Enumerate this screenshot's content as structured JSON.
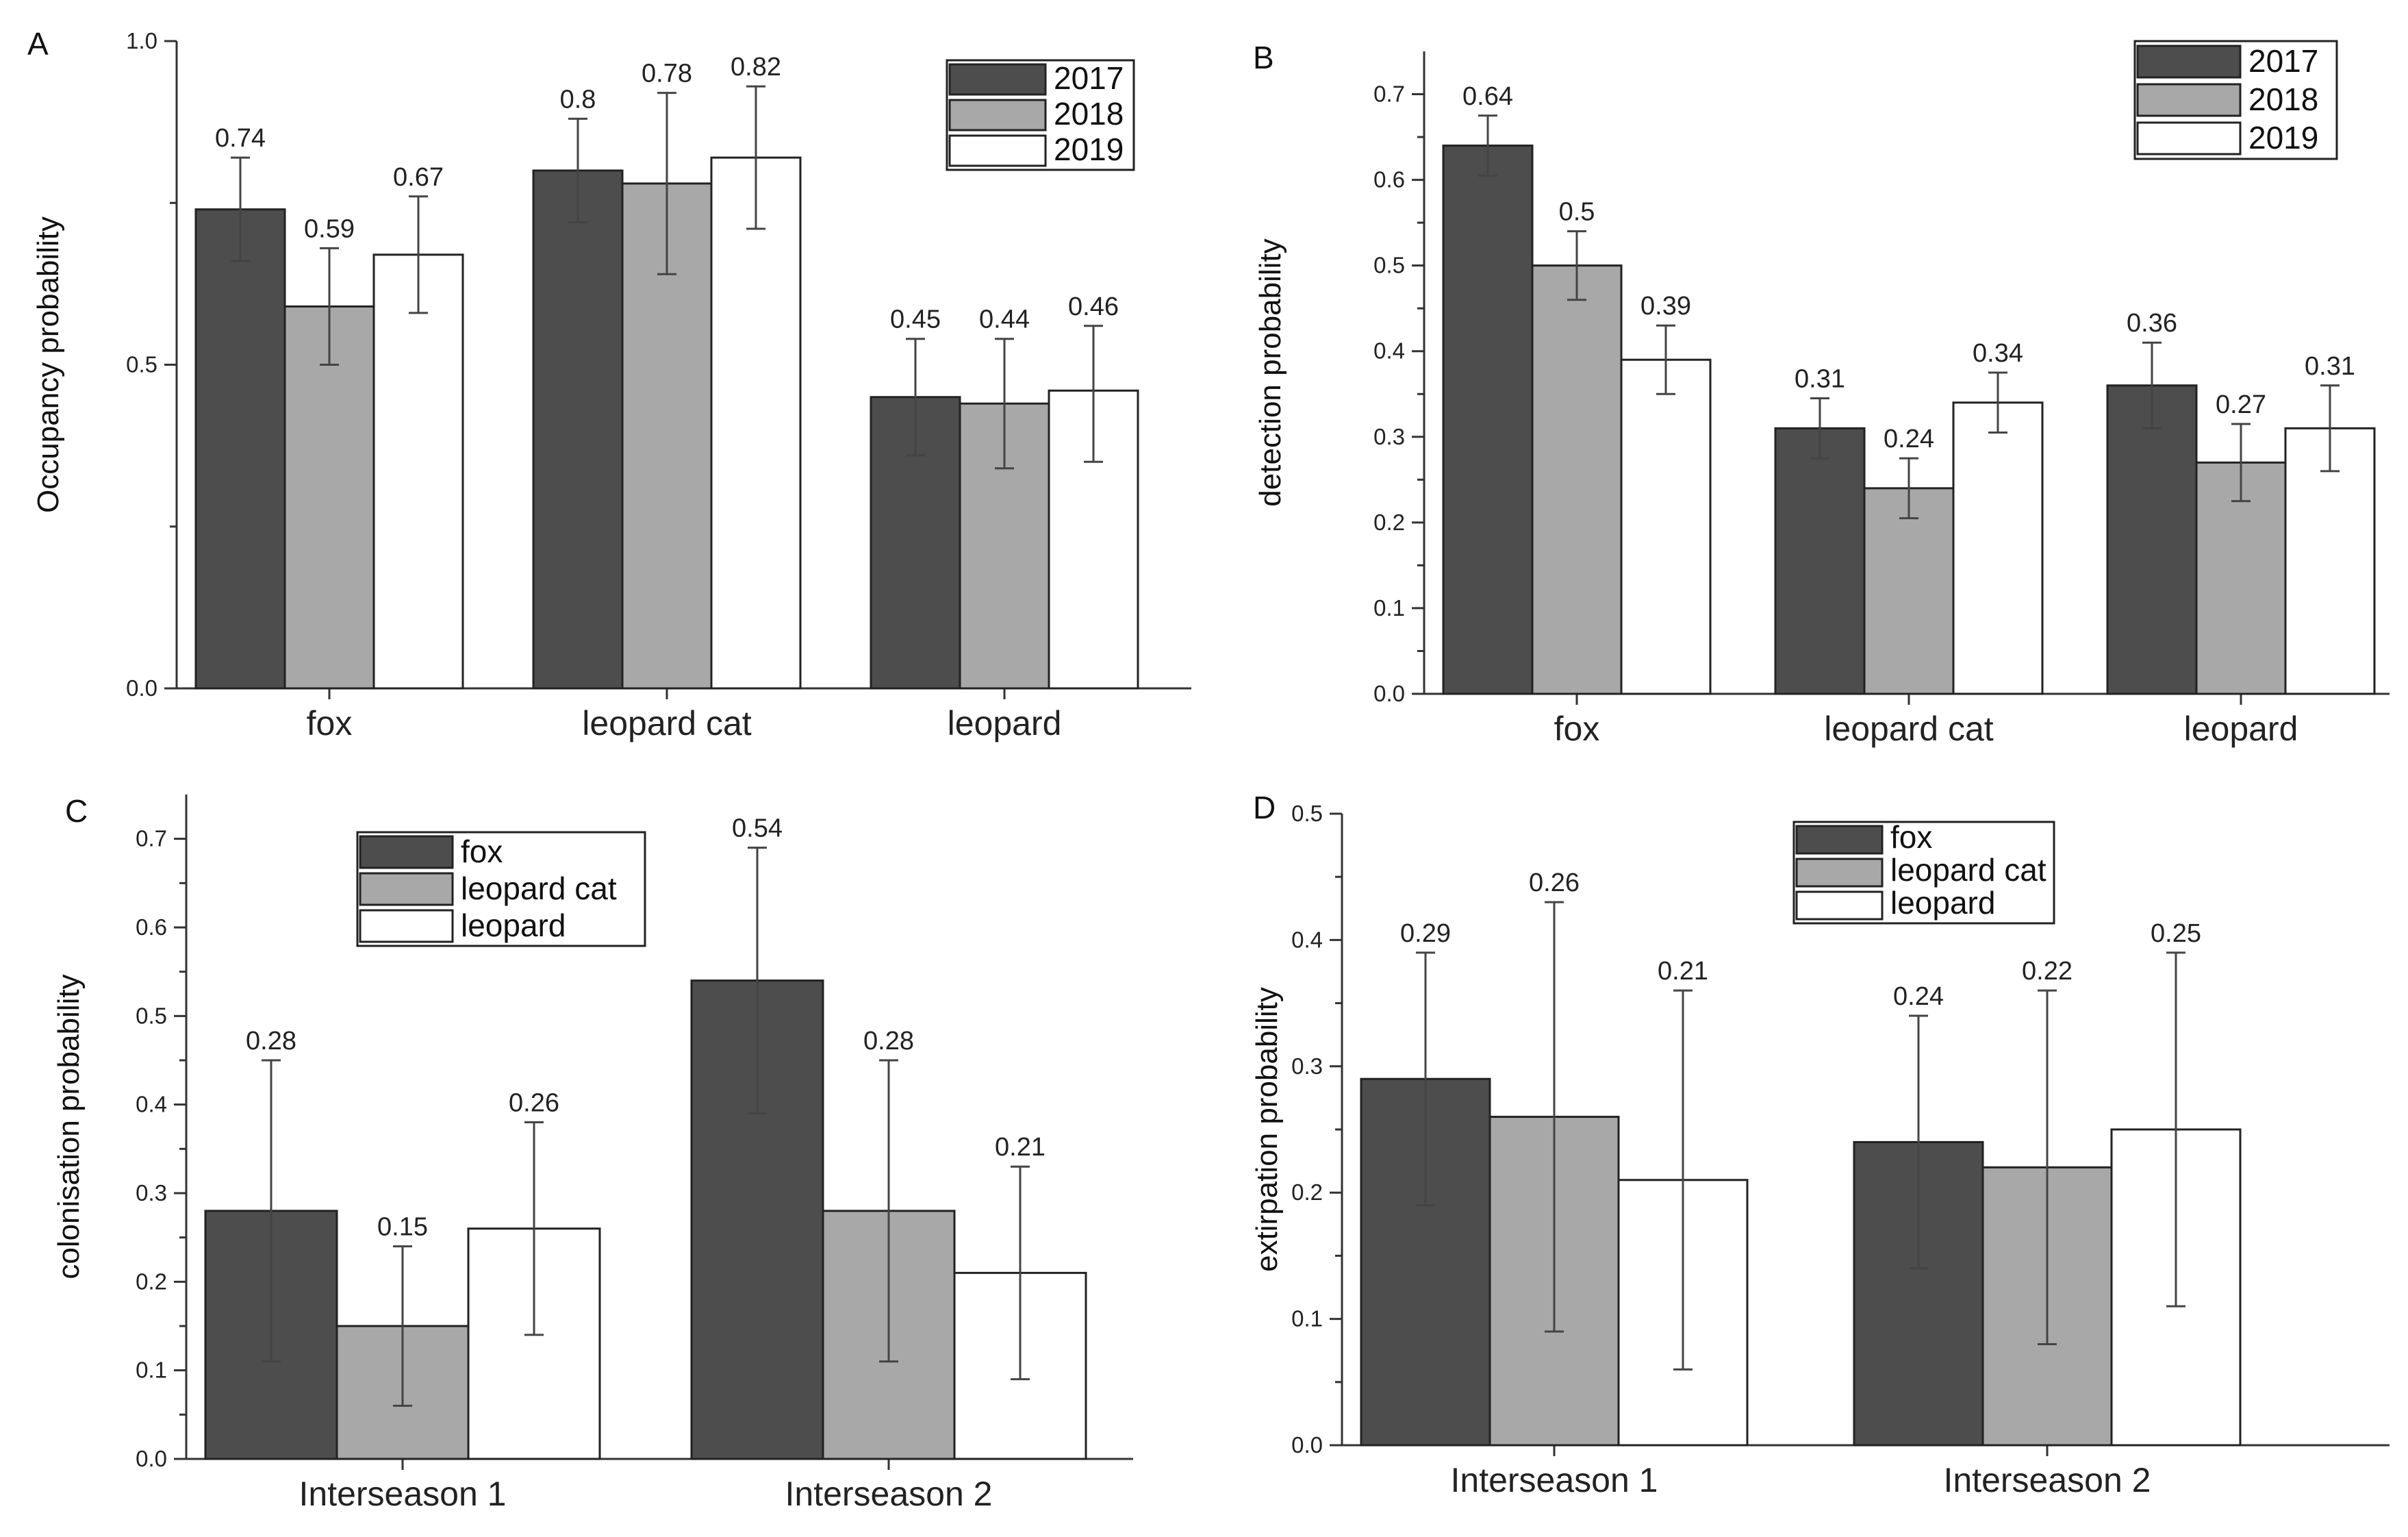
{
  "colors": {
    "dark": "#4d4d4d",
    "gray": "#a8a8a8",
    "white": "#ffffff",
    "border": "#222222"
  },
  "chart_data": [
    {
      "panel": "A",
      "type": "bar",
      "ylabel": "Occupancy probability",
      "ylim": [
        0,
        1.0
      ],
      "yticks": [
        0.0,
        0.5,
        1.0
      ],
      "ytick_labels": [
        "0.0",
        "0.5",
        "1.0"
      ],
      "categories": [
        "fox",
        "leopard cat",
        "leopard"
      ],
      "legend": {
        "position": "top-right"
      },
      "series": [
        {
          "name": "2017",
          "color": "#4d4d4d",
          "values": [
            0.74,
            0.8,
            0.45
          ],
          "labels": [
            "0.74",
            "0.8",
            "0.45"
          ],
          "err_low": [
            0.66,
            0.72,
            0.36
          ],
          "err_high": [
            0.82,
            0.88,
            0.54
          ]
        },
        {
          "name": "2018",
          "color": "#a8a8a8",
          "values": [
            0.59,
            0.78,
            0.44
          ],
          "labels": [
            "0.59",
            "0.78",
            "0.44"
          ],
          "err_low": [
            0.5,
            0.64,
            0.34
          ],
          "err_high": [
            0.68,
            0.92,
            0.54
          ]
        },
        {
          "name": "2019",
          "color": "#ffffff",
          "values": [
            0.67,
            0.82,
            0.46
          ],
          "labels": [
            "0.67",
            "0.82",
            "0.46"
          ],
          "err_low": [
            0.58,
            0.71,
            0.35
          ],
          "err_high": [
            0.76,
            0.93,
            0.56
          ]
        }
      ]
    },
    {
      "panel": "B",
      "type": "bar",
      "ylabel": "detection probability",
      "ylim": [
        0,
        0.75
      ],
      "yticks": [
        0.0,
        0.1,
        0.2,
        0.3,
        0.4,
        0.5,
        0.6,
        0.7
      ],
      "ytick_labels": [
        "0.0",
        "0.1",
        "0.2",
        "0.3",
        "0.4",
        "0.5",
        "0.6",
        "0.7"
      ],
      "categories": [
        "fox",
        "leopard cat",
        "leopard"
      ],
      "legend": {
        "position": "top-right"
      },
      "series": [
        {
          "name": "2017",
          "color": "#4d4d4d",
          "values": [
            0.64,
            0.31,
            0.36
          ],
          "labels": [
            "0.64",
            "0.31",
            "0.36"
          ],
          "err_low": [
            0.605,
            0.275,
            0.31
          ],
          "err_high": [
            0.675,
            0.345,
            0.41
          ]
        },
        {
          "name": "2018",
          "color": "#a8a8a8",
          "values": [
            0.5,
            0.24,
            0.27
          ],
          "labels": [
            "0.5",
            "0.24",
            "0.27"
          ],
          "err_low": [
            0.46,
            0.205,
            0.225
          ],
          "err_high": [
            0.54,
            0.275,
            0.315
          ]
        },
        {
          "name": "2019",
          "color": "#ffffff",
          "values": [
            0.39,
            0.34,
            0.31
          ],
          "labels": [
            "0.39",
            "0.34",
            "0.31"
          ],
          "err_low": [
            0.35,
            0.305,
            0.26
          ],
          "err_high": [
            0.43,
            0.375,
            0.36
          ]
        }
      ]
    },
    {
      "panel": "C",
      "type": "bar",
      "ylabel": "colonisation probability",
      "ylim": [
        0,
        0.75
      ],
      "yticks": [
        0.0,
        0.1,
        0.2,
        0.3,
        0.4,
        0.5,
        0.6,
        0.7
      ],
      "ytick_labels": [
        "0.0",
        "0.1",
        "0.2",
        "0.3",
        "0.4",
        "0.5",
        "0.6",
        "0.7"
      ],
      "categories": [
        "Interseason 1",
        "Interseason 2"
      ],
      "legend": {
        "position": "top-left"
      },
      "series": [
        {
          "name": "fox",
          "color": "#4d4d4d",
          "values": [
            0.28,
            0.54
          ],
          "labels": [
            "0.28",
            "0.54"
          ],
          "err_low": [
            0.11,
            0.39
          ],
          "err_high": [
            0.45,
            0.69
          ]
        },
        {
          "name": "leopard cat",
          "color": "#a8a8a8",
          "values": [
            0.15,
            0.28
          ],
          "labels": [
            "0.15",
            "0.28"
          ],
          "err_low": [
            0.06,
            0.11
          ],
          "err_high": [
            0.24,
            0.45
          ]
        },
        {
          "name": "leopard",
          "color": "#ffffff",
          "values": [
            0.26,
            0.21
          ],
          "labels": [
            "0.26",
            "0.21"
          ],
          "err_low": [
            0.14,
            0.09
          ],
          "err_high": [
            0.38,
            0.33
          ]
        }
      ]
    },
    {
      "panel": "D",
      "type": "bar",
      "ylabel": "extirpation probability",
      "ylim": [
        0,
        0.5
      ],
      "yticks": [
        0.0,
        0.1,
        0.2,
        0.3,
        0.4,
        0.5
      ],
      "ytick_labels": [
        "0.0",
        "0.1",
        "0.2",
        "0.3",
        "0.4",
        "0.5"
      ],
      "categories": [
        "Interseason 1",
        "Interseason 2"
      ],
      "legend": {
        "position": "top-center"
      },
      "series": [
        {
          "name": "fox",
          "color": "#4d4d4d",
          "values": [
            0.29,
            0.24
          ],
          "labels": [
            "0.29",
            "0.24"
          ],
          "err_low": [
            0.19,
            0.14
          ],
          "err_high": [
            0.39,
            0.34
          ]
        },
        {
          "name": "leopard cat",
          "color": "#a8a8a8",
          "values": [
            0.26,
            0.22
          ],
          "labels": [
            "0.26",
            "0.22"
          ],
          "err_low": [
            0.09,
            0.08
          ],
          "err_high": [
            0.43,
            0.36
          ]
        },
        {
          "name": "leopard",
          "color": "#ffffff",
          "values": [
            0.21,
            0.25
          ],
          "labels": [
            "0.21",
            "0.25"
          ],
          "err_low": [
            0.06,
            0.11
          ],
          "err_high": [
            0.36,
            0.39
          ]
        }
      ]
    }
  ]
}
